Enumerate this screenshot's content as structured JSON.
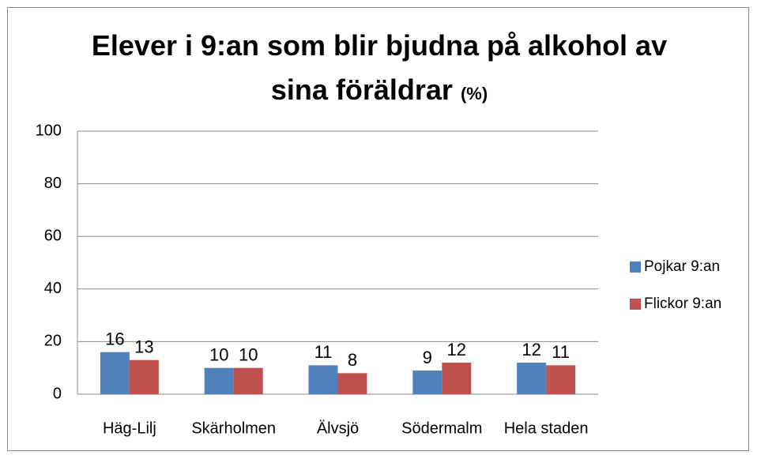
{
  "chart_data": {
    "type": "bar",
    "title": "Elever i 9:an som blir bjudna på alkohol av sina föräldrar",
    "title_unit": "(%)",
    "categories": [
      "Häg-Lilj",
      "Skärholmen",
      "Älvsjö",
      "Södermalm",
      "Hela staden"
    ],
    "series": [
      {
        "name": "Pojkar 9:an",
        "color": "#4f81bd",
        "values": [
          16,
          10,
          11,
          9,
          12
        ]
      },
      {
        "name": "Flickor 9:an",
        "color": "#c0504d",
        "values": [
          13,
          10,
          8,
          12,
          11
        ]
      }
    ],
    "ylim": [
      0,
      100
    ],
    "yticks": [
      0,
      20,
      40,
      60,
      80,
      100
    ],
    "grid": true,
    "legend": "right"
  }
}
